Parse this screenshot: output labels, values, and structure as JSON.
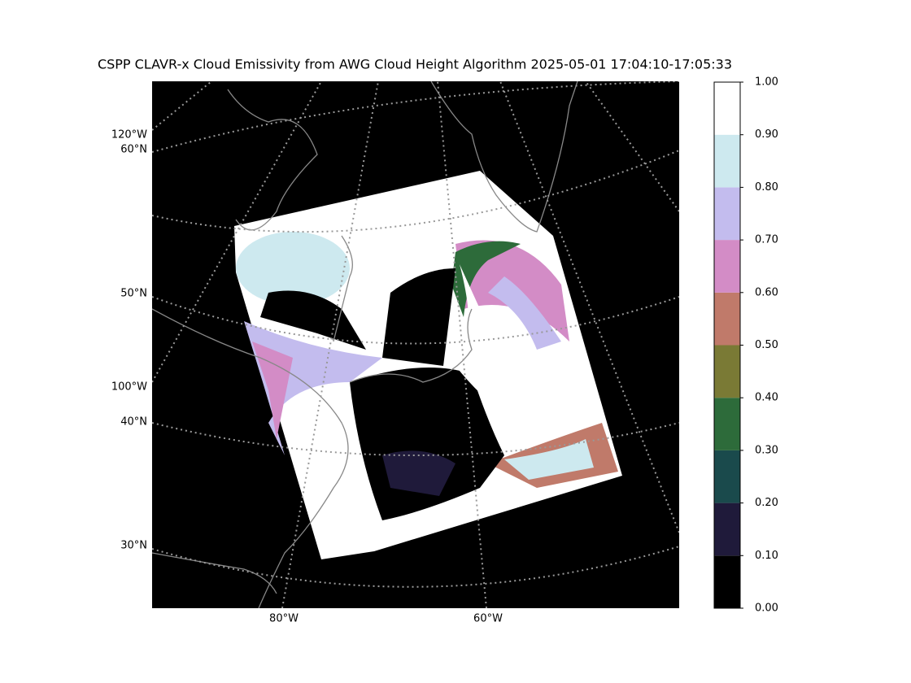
{
  "title": "CSPP CLAVR-x Cloud Emissivity from AWG Cloud Height Algorithm 2025-05-01 17:04:10-17:05:33",
  "map": {
    "left_labels": [
      "120°W",
      "60°N",
      "50°N",
      "100°W",
      "40°N",
      "30°N"
    ],
    "bottom_labels": [
      "80°W",
      "60°W"
    ]
  },
  "colorbar": {
    "ticks": [
      {
        "value": 0,
        "label": "0.00"
      },
      {
        "value": 0.1,
        "label": "0.10"
      },
      {
        "value": 0.2,
        "label": "0.20"
      },
      {
        "value": 0.3,
        "label": "0.30"
      },
      {
        "value": 0.4,
        "label": "0.40"
      },
      {
        "value": 0.5,
        "label": "0.50"
      },
      {
        "value": 0.6,
        "label": "0.60"
      },
      {
        "value": 0.7,
        "label": "0.70"
      },
      {
        "value": 0.8,
        "label": "0.80"
      },
      {
        "value": 0.9,
        "label": "0.90"
      },
      {
        "value": 1,
        "label": "1.00"
      }
    ],
    "colors": [
      "#000000",
      "#1f1a3a",
      "#1a4a4c",
      "#2d6b3a",
      "#7a7a35",
      "#c07a6a",
      "#d38cc6",
      "#c3bcee",
      "#cde9ef",
      "#ffffff"
    ]
  }
}
